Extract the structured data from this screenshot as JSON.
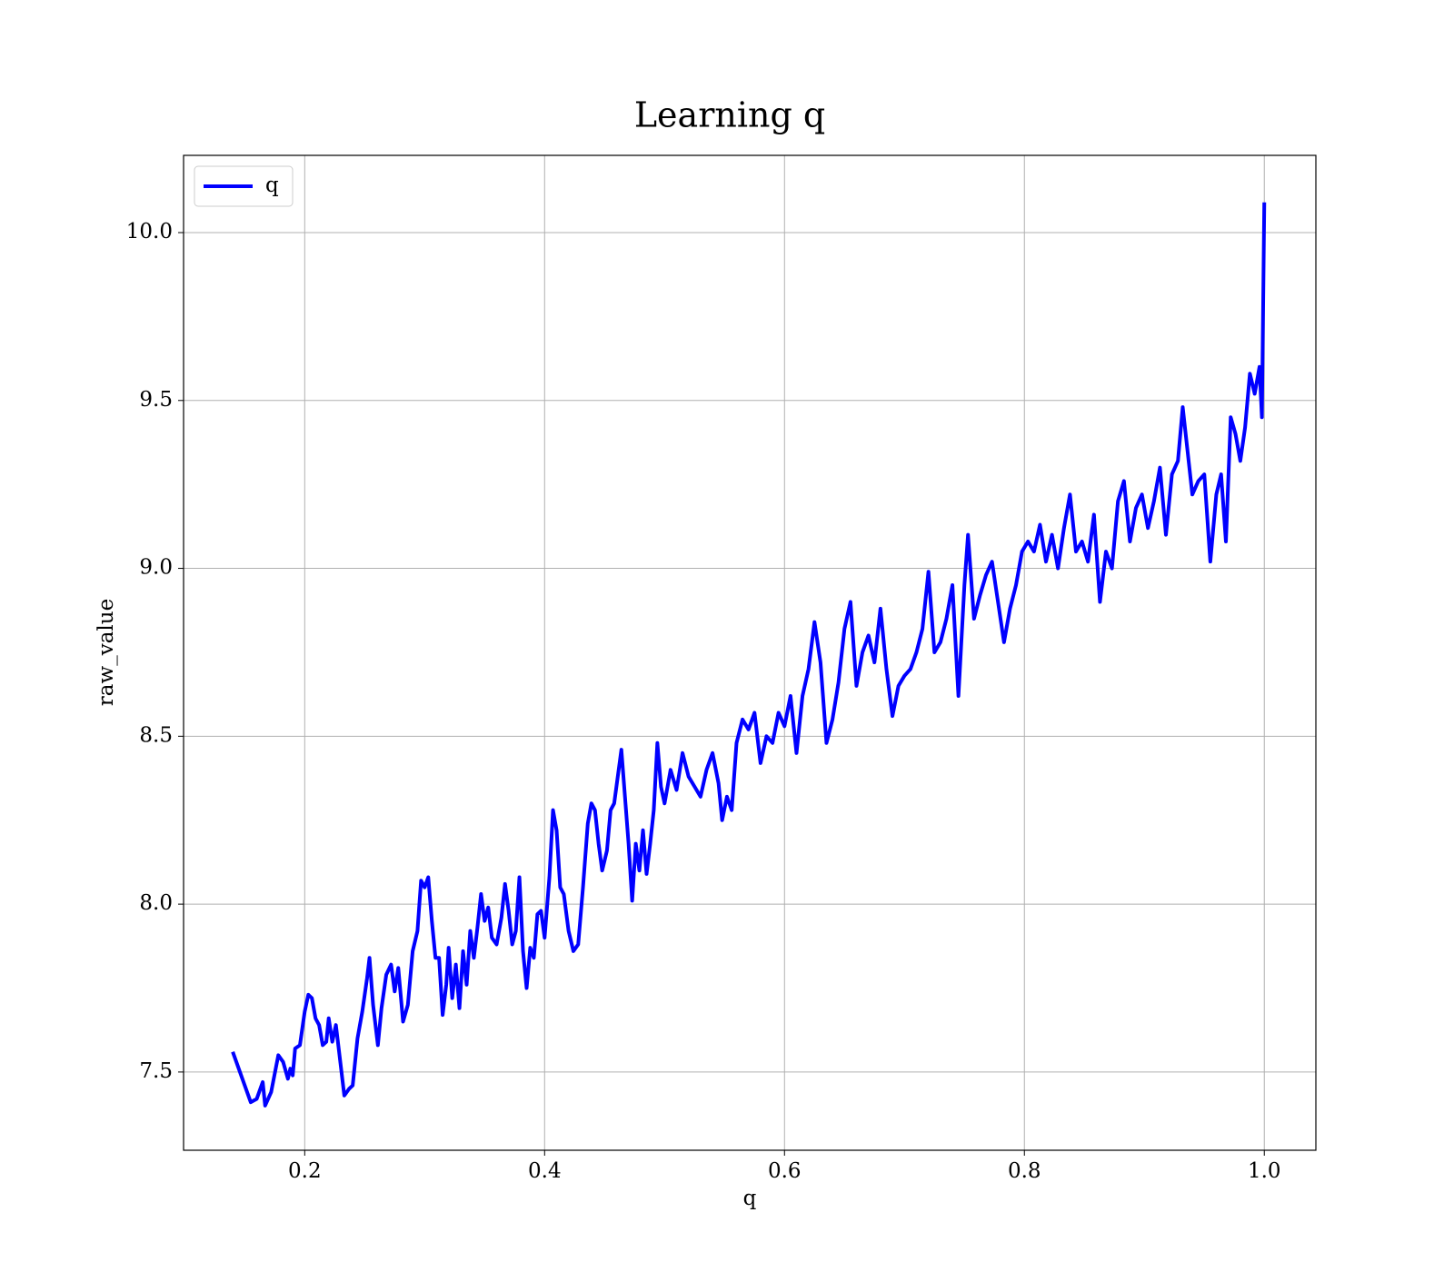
{
  "chart_data": {
    "type": "line",
    "title": "Learning q",
    "xlabel": "q",
    "ylabel": "raw_value",
    "x": [
      0.14,
      0.155,
      0.16,
      0.165,
      0.167,
      0.172,
      0.178,
      0.182,
      0.186,
      0.188,
      0.19,
      0.192,
      0.196,
      0.2,
      0.203,
      0.206,
      0.209,
      0.212,
      0.215,
      0.218,
      0.22,
      0.223,
      0.226,
      0.229,
      0.233,
      0.237,
      0.24,
      0.244,
      0.248,
      0.252,
      0.254,
      0.257,
      0.261,
      0.264,
      0.268,
      0.272,
      0.275,
      0.278,
      0.282,
      0.286,
      0.29,
      0.294,
      0.297,
      0.3,
      0.303,
      0.306,
      0.309,
      0.312,
      0.315,
      0.318,
      0.32,
      0.323,
      0.326,
      0.329,
      0.332,
      0.335,
      0.338,
      0.341,
      0.344,
      0.347,
      0.35,
      0.353,
      0.356,
      0.36,
      0.364,
      0.367,
      0.37,
      0.373,
      0.376,
      0.379,
      0.382,
      0.385,
      0.388,
      0.391,
      0.394,
      0.397,
      0.4,
      0.404,
      0.407,
      0.41,
      0.413,
      0.416,
      0.42,
      0.424,
      0.428,
      0.432,
      0.436,
      0.439,
      0.442,
      0.445,
      0.448,
      0.452,
      0.455,
      0.458,
      0.461,
      0.464,
      0.467,
      0.47,
      0.473,
      0.476,
      0.479,
      0.482,
      0.485,
      0.488,
      0.491,
      0.494,
      0.497,
      0.5,
      0.505,
      0.51,
      0.515,
      0.52,
      0.525,
      0.53,
      0.535,
      0.54,
      0.545,
      0.548,
      0.552,
      0.556,
      0.56,
      0.565,
      0.57,
      0.575,
      0.58,
      0.585,
      0.59,
      0.595,
      0.6,
      0.605,
      0.61,
      0.615,
      0.62,
      0.625,
      0.63,
      0.635,
      0.64,
      0.645,
      0.65,
      0.655,
      0.66,
      0.665,
      0.67,
      0.675,
      0.68,
      0.685,
      0.69,
      0.695,
      0.7,
      0.705,
      0.71,
      0.715,
      0.72,
      0.725,
      0.73,
      0.735,
      0.74,
      0.745,
      0.75,
      0.753,
      0.758,
      0.763,
      0.768,
      0.773,
      0.778,
      0.783,
      0.788,
      0.793,
      0.798,
      0.803,
      0.808,
      0.813,
      0.818,
      0.823,
      0.828,
      0.833,
      0.838,
      0.843,
      0.848,
      0.853,
      0.858,
      0.863,
      0.868,
      0.873,
      0.878,
      0.883,
      0.888,
      0.893,
      0.898,
      0.903,
      0.908,
      0.913,
      0.918,
      0.923,
      0.928,
      0.932,
      0.936,
      0.94,
      0.945,
      0.95,
      0.955,
      0.96,
      0.964,
      0.968,
      0.972,
      0.976,
      0.98,
      0.984,
      0.988,
      0.992,
      0.996,
      0.998,
      1.0
    ],
    "series": [
      {
        "name": "q",
        "color": "#0000ff",
        "values": [
          7.56,
          7.41,
          7.42,
          7.47,
          7.4,
          7.44,
          7.55,
          7.53,
          7.48,
          7.51,
          7.49,
          7.57,
          7.58,
          7.68,
          7.73,
          7.72,
          7.66,
          7.64,
          7.58,
          7.59,
          7.66,
          7.59,
          7.64,
          7.55,
          7.43,
          7.45,
          7.46,
          7.6,
          7.68,
          7.78,
          7.84,
          7.7,
          7.58,
          7.69,
          7.79,
          7.82,
          7.74,
          7.81,
          7.65,
          7.7,
          7.86,
          7.92,
          8.07,
          8.05,
          8.08,
          7.95,
          7.84,
          7.84,
          7.67,
          7.76,
          7.87,
          7.72,
          7.82,
          7.69,
          7.86,
          7.76,
          7.92,
          7.84,
          7.93,
          8.03,
          7.95,
          7.99,
          7.9,
          7.88,
          7.96,
          8.06,
          7.98,
          7.88,
          7.92,
          8.08,
          7.86,
          7.75,
          7.87,
          7.84,
          7.97,
          7.98,
          7.9,
          8.08,
          8.28,
          8.22,
          8.05,
          8.03,
          7.92,
          7.86,
          7.88,
          8.05,
          8.24,
          8.3,
          8.28,
          8.18,
          8.1,
          8.16,
          8.28,
          8.3,
          8.38,
          8.46,
          8.32,
          8.18,
          8.01,
          8.18,
          8.1,
          8.22,
          8.09,
          8.18,
          8.28,
          8.48,
          8.35,
          8.3,
          8.4,
          8.34,
          8.45,
          8.38,
          8.35,
          8.32,
          8.4,
          8.45,
          8.36,
          8.25,
          8.32,
          8.28,
          8.48,
          8.55,
          8.52,
          8.57,
          8.42,
          8.5,
          8.48,
          8.57,
          8.53,
          8.62,
          8.45,
          8.62,
          8.7,
          8.84,
          8.72,
          8.48,
          8.55,
          8.66,
          8.82,
          8.9,
          8.65,
          8.75,
          8.8,
          8.72,
          8.88,
          8.7,
          8.56,
          8.65,
          8.68,
          8.7,
          8.75,
          8.82,
          8.99,
          8.75,
          8.78,
          8.85,
          8.95,
          8.62,
          8.95,
          9.1,
          8.85,
          8.92,
          8.98,
          9.02,
          8.9,
          8.78,
          8.88,
          8.95,
          9.05,
          9.08,
          9.05,
          9.13,
          9.02,
          9.1,
          9.0,
          9.12,
          9.22,
          9.05,
          9.08,
          9.02,
          9.16,
          8.9,
          9.05,
          9.0,
          9.2,
          9.26,
          9.08,
          9.18,
          9.22,
          9.12,
          9.2,
          9.3,
          9.1,
          9.28,
          9.32,
          9.48,
          9.35,
          9.22,
          9.26,
          9.28,
          9.02,
          9.22,
          9.28,
          9.08,
          9.45,
          9.4,
          9.32,
          9.42,
          9.58,
          9.52,
          9.6,
          9.45,
          10.09
        ]
      }
    ],
    "xlim": [
      0.099,
      1.043
    ],
    "ylim": [
      7.267,
      10.23
    ],
    "xticks": [
      0.2,
      0.4,
      0.6,
      0.8,
      {
        "value": 1.0,
        "label": "1.0"
      }
    ],
    "yticks": [
      7.5,
      {
        "value": 8.0,
        "label": "8.0"
      },
      8.5,
      {
        "value": 9.0,
        "label": "9.0"
      },
      9.5,
      {
        "value": 10.0,
        "label": "10.0"
      }
    ],
    "grid": true,
    "legend": "upper left"
  }
}
